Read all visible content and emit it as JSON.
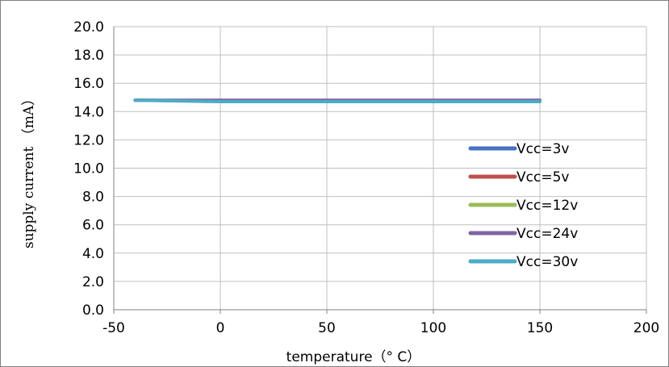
{
  "chart_data": {
    "type": "line",
    "title": "",
    "xlabel": "temperature（° C）",
    "ylabel": "supply current （mA）",
    "xlim": [
      -50,
      200
    ],
    "ylim": [
      0,
      20
    ],
    "x_ticks": [
      -50,
      0,
      50,
      100,
      150,
      200
    ],
    "y_ticks": [
      "0.0",
      "2.0",
      "4.0",
      "6.0",
      "8.0",
      "10.0",
      "12.0",
      "14.0",
      "16.0",
      "18.0",
      "20.0"
    ],
    "grid": true,
    "legend_position": "right",
    "series": [
      {
        "name": "Vcc=3v",
        "color": "#4472C4",
        "x": [
          -40,
          0,
          150
        ],
        "y": [
          14.8,
          14.75,
          14.75
        ]
      },
      {
        "name": "Vcc=5v",
        "color": "#C0504D",
        "x": [
          -40,
          0,
          150
        ],
        "y": [
          14.8,
          14.75,
          14.75
        ]
      },
      {
        "name": "Vcc=12v",
        "color": "#9BBB59",
        "x": [
          -40,
          0,
          150
        ],
        "y": [
          14.8,
          14.75,
          14.75
        ]
      },
      {
        "name": "Vcc=24v",
        "color": "#8064A2",
        "x": [
          -40,
          0,
          150
        ],
        "y": [
          14.8,
          14.8,
          14.8
        ]
      },
      {
        "name": "Vcc=30v",
        "color": "#4BACC6",
        "x": [
          -40,
          0,
          150
        ],
        "y": [
          14.8,
          14.7,
          14.7
        ]
      }
    ]
  }
}
